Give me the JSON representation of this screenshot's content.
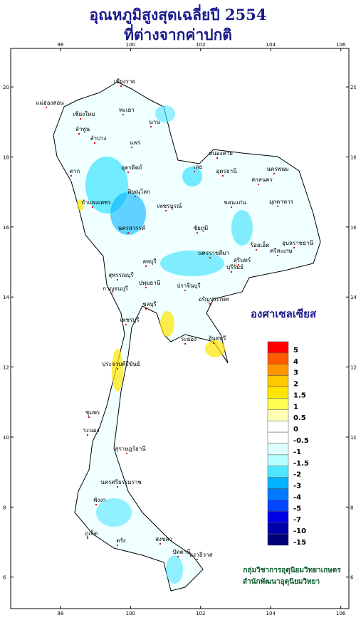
{
  "title": "อุณหภูมิสูงสุดเฉลี่ยปี 2554",
  "subtitle": "ที่ต่างจากค่าปกติ",
  "map": {
    "xlim": [
      96.58,
      106.23
    ],
    "ylim": [
      5.1,
      21.1
    ],
    "xticks": [
      98,
      100,
      102,
      104,
      106
    ],
    "yticks": [
      6,
      8,
      10,
      12,
      14,
      16,
      18,
      20
    ]
  },
  "legend": {
    "title": "องศาเซลเซียส",
    "items": [
      {
        "label": 5,
        "color": "#ff0000"
      },
      {
        "label": 4,
        "color": "#ff5a00"
      },
      {
        "label": 3,
        "color": "#ff9600"
      },
      {
        "label": 2,
        "color": "#ffc800"
      },
      {
        "label": 1.5,
        "color": "#ffe600"
      },
      {
        "label": 1,
        "color": "#ffff50"
      },
      {
        "label": 0.5,
        "color": "#ffffb4"
      },
      {
        "label": 0,
        "color": "#ffffff"
      },
      {
        "label": -0.5,
        "color": "#ffffff"
      },
      {
        "label": -1,
        "color": "#e0ffff"
      },
      {
        "label": -1.5,
        "color": "#b4ffff"
      },
      {
        "label": -2,
        "color": "#50e6ff"
      },
      {
        "label": -3,
        "color": "#00b4ff"
      },
      {
        "label": -4,
        "color": "#0078ff"
      },
      {
        "label": -5,
        "color": "#0046ff"
      },
      {
        "label": -7,
        "color": "#0000e6"
      },
      {
        "label": -10,
        "color": "#0000aa"
      },
      {
        "label": -15,
        "color": "#000078"
      }
    ]
  },
  "provinces": [
    "เชียงราย",
    "แม่ฮ่องสอน",
    "เชียงใหม่",
    "พะเยา",
    "ลำพูน",
    "น่าน",
    "ลำปาง",
    "แพร่",
    "ตาก",
    "อุตรดิตถ์",
    "เลย",
    "หนองคาย",
    "อุดรธานี",
    "นครพนม",
    "สกลนคร",
    "มุกดาหาร",
    "พิษณุโลก",
    "กำแพงเพชร",
    "เพชรบูรณ์",
    "ขอนแก่น",
    "นครสวรรค์",
    "ชัยภูมิ",
    "ร้อยเอ็ด",
    "อุบลราชธานี",
    "ลพบุรี",
    "นครราชสีมา",
    "สุรินทร์",
    "ศรีสะเกษ",
    "สุพรรณบุรี",
    "กาญจนบุรี",
    "ปทุมธานี",
    "ปราจีนบุรี",
    "บุรีรัมย์",
    "อรัญประเทศ",
    "เพชรบุรี",
    "ชลบุรี",
    "ระยอง",
    "จันทบุรี",
    "ประจวบคีรีขันธ์",
    "ชุมพร",
    "ระนอง",
    "สุราษฎร์ธานี",
    "นครศรีธรรมราช",
    "พังงา",
    "ภูเก็ต",
    "ตรัง",
    "สงขลา",
    "ปัตตานี",
    "นราธิวาส"
  ],
  "credits": [
    "กลุ่มวิชาการอุตุนิยมวิทยาเกษตร",
    "สำนักพัฒนาอุตุนิยมวิทยา"
  ]
}
